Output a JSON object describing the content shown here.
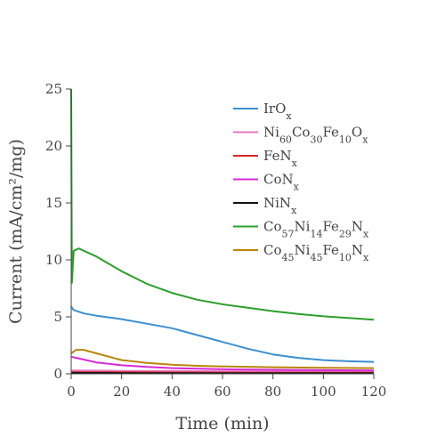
{
  "chart_data": {
    "type": "line",
    "xlabel": "Time (min)",
    "ylabel": "Current (mA/cm²/mg)",
    "xlim": [
      0,
      120
    ],
    "ylim": [
      0,
      25
    ],
    "xticks": [
      0,
      20,
      40,
      60,
      80,
      100,
      120
    ],
    "yticks": [
      0,
      5,
      10,
      15,
      20,
      25
    ],
    "grid": false,
    "legend_position": "top-right",
    "series": [
      {
        "name": "IrOx",
        "label_parts": [
          {
            "t": "IrO"
          },
          {
            "t": "x",
            "sub": true
          }
        ],
        "color": "#3a8fd1",
        "points": [
          [
            0,
            5.9
          ],
          [
            1,
            5.6
          ],
          [
            5,
            5.3
          ],
          [
            10,
            5.1
          ],
          [
            20,
            4.8
          ],
          [
            30,
            4.4
          ],
          [
            40,
            4.0
          ],
          [
            50,
            3.4
          ],
          [
            60,
            2.8
          ],
          [
            70,
            2.2
          ],
          [
            80,
            1.7
          ],
          [
            90,
            1.4
          ],
          [
            100,
            1.2
          ],
          [
            110,
            1.1
          ],
          [
            120,
            1.05
          ]
        ]
      },
      {
        "name": "Ni60Co30Fe10Ox",
        "label_parts": [
          {
            "t": "Ni"
          },
          {
            "t": "60",
            "sub": true
          },
          {
            "t": "Co"
          },
          {
            "t": "30",
            "sub": true
          },
          {
            "t": "Fe"
          },
          {
            "t": "10",
            "sub": true
          },
          {
            "t": "O"
          },
          {
            "t": "x",
            "sub": true
          }
        ],
        "color": "#e377c2",
        "points": [
          [
            0,
            0.3
          ],
          [
            10,
            0.28
          ],
          [
            20,
            0.26
          ],
          [
            40,
            0.24
          ],
          [
            60,
            0.22
          ],
          [
            80,
            0.21
          ],
          [
            100,
            0.2
          ],
          [
            120,
            0.2
          ]
        ]
      },
      {
        "name": "FeNx",
        "label_parts": [
          {
            "t": "FeN"
          },
          {
            "t": "x",
            "sub": true
          }
        ],
        "color": "#d62728",
        "points": [
          [
            0,
            0.15
          ],
          [
            20,
            0.13
          ],
          [
            40,
            0.12
          ],
          [
            60,
            0.11
          ],
          [
            80,
            0.1
          ],
          [
            100,
            0.1
          ],
          [
            120,
            0.1
          ]
        ]
      },
      {
        "name": "CoNx",
        "label_parts": [
          {
            "t": "CoN"
          },
          {
            "t": "x",
            "sub": true
          }
        ],
        "color": "#d62ad6",
        "points": [
          [
            0,
            1.5
          ],
          [
            2,
            1.4
          ],
          [
            5,
            1.25
          ],
          [
            10,
            1.0
          ],
          [
            20,
            0.75
          ],
          [
            30,
            0.6
          ],
          [
            40,
            0.5
          ],
          [
            60,
            0.4
          ],
          [
            80,
            0.35
          ],
          [
            100,
            0.32
          ],
          [
            120,
            0.3
          ]
        ]
      },
      {
        "name": "NiNx",
        "label_parts": [
          {
            "t": "NiN"
          },
          {
            "t": "x",
            "sub": true
          }
        ],
        "color": "#111111",
        "points": [
          [
            0,
            0.08
          ],
          [
            20,
            0.06
          ],
          [
            40,
            0.05
          ],
          [
            60,
            0.05
          ],
          [
            80,
            0.05
          ],
          [
            100,
            0.05
          ],
          [
            120,
            0.05
          ]
        ]
      },
      {
        "name": "Co57Ni14Fe29Nx",
        "label_parts": [
          {
            "t": "Co"
          },
          {
            "t": "57",
            "sub": true
          },
          {
            "t": "Ni"
          },
          {
            "t": "14",
            "sub": true
          },
          {
            "t": "Fe"
          },
          {
            "t": "29",
            "sub": true
          },
          {
            "t": "N"
          },
          {
            "t": "x",
            "sub": true
          }
        ],
        "color": "#2ca02c",
        "points": [
          [
            0,
            25
          ],
          [
            0.3,
            8
          ],
          [
            1,
            10.8
          ],
          [
            3,
            11.0
          ],
          [
            5,
            10.8
          ],
          [
            10,
            10.3
          ],
          [
            20,
            9.0
          ],
          [
            30,
            7.9
          ],
          [
            40,
            7.1
          ],
          [
            50,
            6.5
          ],
          [
            60,
            6.1
          ],
          [
            70,
            5.8
          ],
          [
            80,
            5.5
          ],
          [
            90,
            5.25
          ],
          [
            100,
            5.05
          ],
          [
            110,
            4.9
          ],
          [
            120,
            4.75
          ]
        ]
      },
      {
        "name": "Co45Ni45Fe10Nx",
        "label_parts": [
          {
            "t": "Co"
          },
          {
            "t": "45",
            "sub": true
          },
          {
            "t": "Ni"
          },
          {
            "t": "45",
            "sub": true
          },
          {
            "t": "Fe"
          },
          {
            "t": "10",
            "sub": true
          },
          {
            "t": "N"
          },
          {
            "t": "x",
            "sub": true
          }
        ],
        "color": "#b8860b",
        "points": [
          [
            0,
            1.8
          ],
          [
            2,
            2.1
          ],
          [
            5,
            2.1
          ],
          [
            10,
            1.8
          ],
          [
            20,
            1.2
          ],
          [
            30,
            0.95
          ],
          [
            40,
            0.8
          ],
          [
            50,
            0.7
          ],
          [
            60,
            0.65
          ],
          [
            80,
            0.58
          ],
          [
            100,
            0.52
          ],
          [
            120,
            0.5
          ]
        ]
      }
    ]
  }
}
